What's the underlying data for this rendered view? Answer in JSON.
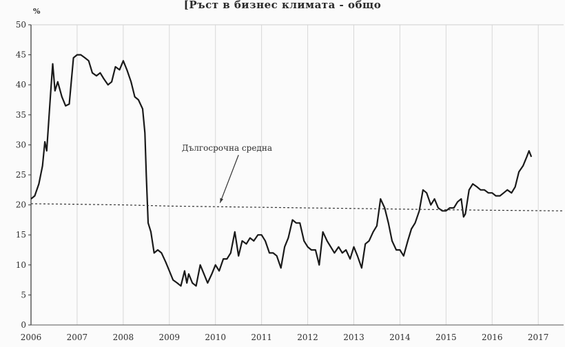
{
  "chart_data": {
    "type": "line",
    "title": "[Ръст в бизнес климата - общо",
    "ylabel": "%",
    "xlabel": "",
    "ylim": [
      0,
      50
    ],
    "xlim": [
      2006,
      2017.55
    ],
    "grid": true,
    "y_ticks": [
      0,
      5,
      10,
      15,
      20,
      25,
      30,
      35,
      40,
      45,
      50
    ],
    "x_ticks": [
      2006,
      2007,
      2008,
      2009,
      2010,
      2011,
      2012,
      2013,
      2014,
      2015,
      2016,
      2017
    ],
    "x_tick_labels": [
      "2006",
      "2007",
      "2008",
      "2009",
      "2010",
      "2011",
      "2012",
      "2013",
      "2014",
      "2015",
      "2016",
      "2017"
    ],
    "series": [
      {
        "values": [
          [
            2006.0,
            21.0
          ],
          [
            2006.08,
            21.5
          ],
          [
            2006.17,
            23.5
          ],
          [
            2006.25,
            26.5
          ],
          [
            2006.3,
            30.5
          ],
          [
            2006.34,
            29.0
          ],
          [
            2006.42,
            38.0
          ],
          [
            2006.47,
            43.5
          ],
          [
            2006.52,
            39.0
          ],
          [
            2006.58,
            40.5
          ],
          [
            2006.67,
            38.0
          ],
          [
            2006.75,
            36.5
          ],
          [
            2006.83,
            36.8
          ],
          [
            2006.92,
            44.5
          ],
          [
            2007.0,
            45.0
          ],
          [
            2007.08,
            45.0
          ],
          [
            2007.17,
            44.5
          ],
          [
            2007.25,
            44.0
          ],
          [
            2007.33,
            42.0
          ],
          [
            2007.42,
            41.5
          ],
          [
            2007.5,
            42.0
          ],
          [
            2007.58,
            41.0
          ],
          [
            2007.67,
            40.0
          ],
          [
            2007.75,
            40.5
          ],
          [
            2007.83,
            43.0
          ],
          [
            2007.92,
            42.5
          ],
          [
            2008.0,
            44.0
          ],
          [
            2008.08,
            42.5
          ],
          [
            2008.17,
            40.5
          ],
          [
            2008.25,
            38.0
          ],
          [
            2008.33,
            37.5
          ],
          [
            2008.42,
            36.0
          ],
          [
            2008.47,
            32.0
          ],
          [
            2008.5,
            25.0
          ],
          [
            2008.54,
            17.0
          ],
          [
            2008.6,
            15.5
          ],
          [
            2008.67,
            12.0
          ],
          [
            2008.75,
            12.5
          ],
          [
            2008.83,
            12.0
          ],
          [
            2008.92,
            10.5
          ],
          [
            2009.0,
            9.0
          ],
          [
            2009.08,
            7.5
          ],
          [
            2009.17,
            7.0
          ],
          [
            2009.25,
            6.5
          ],
          [
            2009.33,
            9.0
          ],
          [
            2009.38,
            7.0
          ],
          [
            2009.42,
            8.5
          ],
          [
            2009.5,
            7.0
          ],
          [
            2009.58,
            6.5
          ],
          [
            2009.67,
            10.0
          ],
          [
            2009.75,
            8.5
          ],
          [
            2009.83,
            7.0
          ],
          [
            2009.92,
            8.5
          ],
          [
            2010.0,
            10.0
          ],
          [
            2010.08,
            9.0
          ],
          [
            2010.17,
            11.0
          ],
          [
            2010.25,
            11.0
          ],
          [
            2010.33,
            12.0
          ],
          [
            2010.42,
            15.5
          ],
          [
            2010.5,
            11.5
          ],
          [
            2010.58,
            14.0
          ],
          [
            2010.67,
            13.5
          ],
          [
            2010.75,
            14.5
          ],
          [
            2010.83,
            14.0
          ],
          [
            2010.92,
            15.0
          ],
          [
            2011.0,
            15.0
          ],
          [
            2011.08,
            14.0
          ],
          [
            2011.17,
            12.0
          ],
          [
            2011.25,
            12.0
          ],
          [
            2011.33,
            11.5
          ],
          [
            2011.42,
            9.5
          ],
          [
            2011.5,
            13.0
          ],
          [
            2011.58,
            14.5
          ],
          [
            2011.67,
            17.5
          ],
          [
            2011.75,
            17.0
          ],
          [
            2011.83,
            17.0
          ],
          [
            2011.92,
            14.0
          ],
          [
            2012.0,
            13.0
          ],
          [
            2012.08,
            12.5
          ],
          [
            2012.17,
            12.5
          ],
          [
            2012.25,
            10.0
          ],
          [
            2012.33,
            15.5
          ],
          [
            2012.42,
            14.0
          ],
          [
            2012.5,
            13.0
          ],
          [
            2012.58,
            12.0
          ],
          [
            2012.67,
            13.0
          ],
          [
            2012.75,
            12.0
          ],
          [
            2012.83,
            12.5
          ],
          [
            2012.92,
            11.0
          ],
          [
            2013.0,
            13.0
          ],
          [
            2013.08,
            11.5
          ],
          [
            2013.17,
            9.5
          ],
          [
            2013.25,
            13.5
          ],
          [
            2013.33,
            14.0
          ],
          [
            2013.42,
            15.5
          ],
          [
            2013.5,
            16.5
          ],
          [
            2013.58,
            21.0
          ],
          [
            2013.67,
            19.5
          ],
          [
            2013.75,
            17.0
          ],
          [
            2013.83,
            14.0
          ],
          [
            2013.92,
            12.5
          ],
          [
            2014.0,
            12.5
          ],
          [
            2014.08,
            11.5
          ],
          [
            2014.17,
            14.0
          ],
          [
            2014.25,
            16.0
          ],
          [
            2014.33,
            17.0
          ],
          [
            2014.42,
            19.0
          ],
          [
            2014.5,
            22.5
          ],
          [
            2014.58,
            22.0
          ],
          [
            2014.67,
            20.0
          ],
          [
            2014.75,
            21.0
          ],
          [
            2014.83,
            19.5
          ],
          [
            2014.92,
            19.0
          ],
          [
            2015.0,
            19.0
          ],
          [
            2015.08,
            19.5
          ],
          [
            2015.17,
            19.5
          ],
          [
            2015.25,
            20.5
          ],
          [
            2015.33,
            21.0
          ],
          [
            2015.38,
            18.0
          ],
          [
            2015.42,
            18.5
          ],
          [
            2015.5,
            22.5
          ],
          [
            2015.58,
            23.5
          ],
          [
            2015.67,
            23.0
          ],
          [
            2015.75,
            22.5
          ],
          [
            2015.83,
            22.5
          ],
          [
            2015.92,
            22.0
          ],
          [
            2016.0,
            22.0
          ],
          [
            2016.08,
            21.5
          ],
          [
            2016.17,
            21.5
          ],
          [
            2016.25,
            22.0
          ],
          [
            2016.33,
            22.5
          ],
          [
            2016.42,
            22.0
          ],
          [
            2016.5,
            23.0
          ],
          [
            2016.58,
            25.5
          ],
          [
            2016.67,
            26.5
          ],
          [
            2016.75,
            28.0
          ],
          [
            2016.8,
            29.0
          ],
          [
            2016.85,
            28.0
          ]
        ]
      },
      {
        "values": [
          [
            2006.0,
            20.2
          ],
          [
            2007.0,
            20.1
          ],
          [
            2008.0,
            20.0
          ],
          [
            2009.0,
            19.8
          ],
          [
            2010.0,
            19.7
          ],
          [
            2011.0,
            19.6
          ],
          [
            2012.0,
            19.5
          ],
          [
            2013.0,
            19.4
          ],
          [
            2014.0,
            19.3
          ],
          [
            2015.0,
            19.2
          ],
          [
            2016.0,
            19.1
          ],
          [
            2017.55,
            19.0
          ]
        ]
      }
    ],
    "annotations": [
      {
        "text": "Дългосрочна средна",
        "x": 2010.25,
        "y": 29.0,
        "arrow_to": [
          2010.1,
          20.0
        ]
      }
    ]
  }
}
